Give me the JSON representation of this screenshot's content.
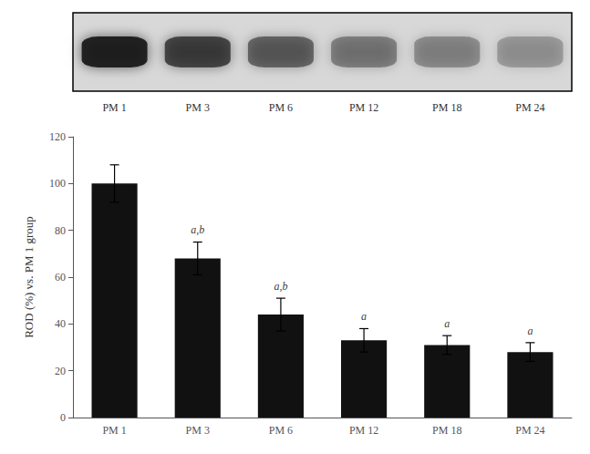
{
  "chart_data": {
    "type": "bar",
    "categories": [
      "PM 1",
      "PM 3",
      "PM 6",
      "PM 12",
      "PM 18",
      "PM 24"
    ],
    "values": [
      100,
      68,
      44,
      33,
      31,
      28
    ],
    "errors": [
      8,
      7,
      7,
      5,
      4,
      4
    ],
    "color": "#111111",
    "ylabel": "ROD (%) vs. PM 1 group",
    "ylim": [
      0,
      120
    ],
    "yticks": [
      0,
      20,
      40,
      60,
      80,
      100,
      120
    ],
    "grid": false,
    "annotations": [
      {
        "text": "a,b",
        "x": "PM 3",
        "y": 77
      },
      {
        "text": "a,b",
        "x": "PM 6",
        "y": 53
      },
      {
        "text": "a",
        "x": "PM 12",
        "y": 40
      },
      {
        "text": "a",
        "x": "PM 18",
        "y": 37
      },
      {
        "text": "a",
        "x": "PM 24",
        "y": 34
      }
    ],
    "band_intensities": [
      0.92,
      0.72,
      0.52,
      0.4,
      0.34,
      0.28
    ]
  }
}
